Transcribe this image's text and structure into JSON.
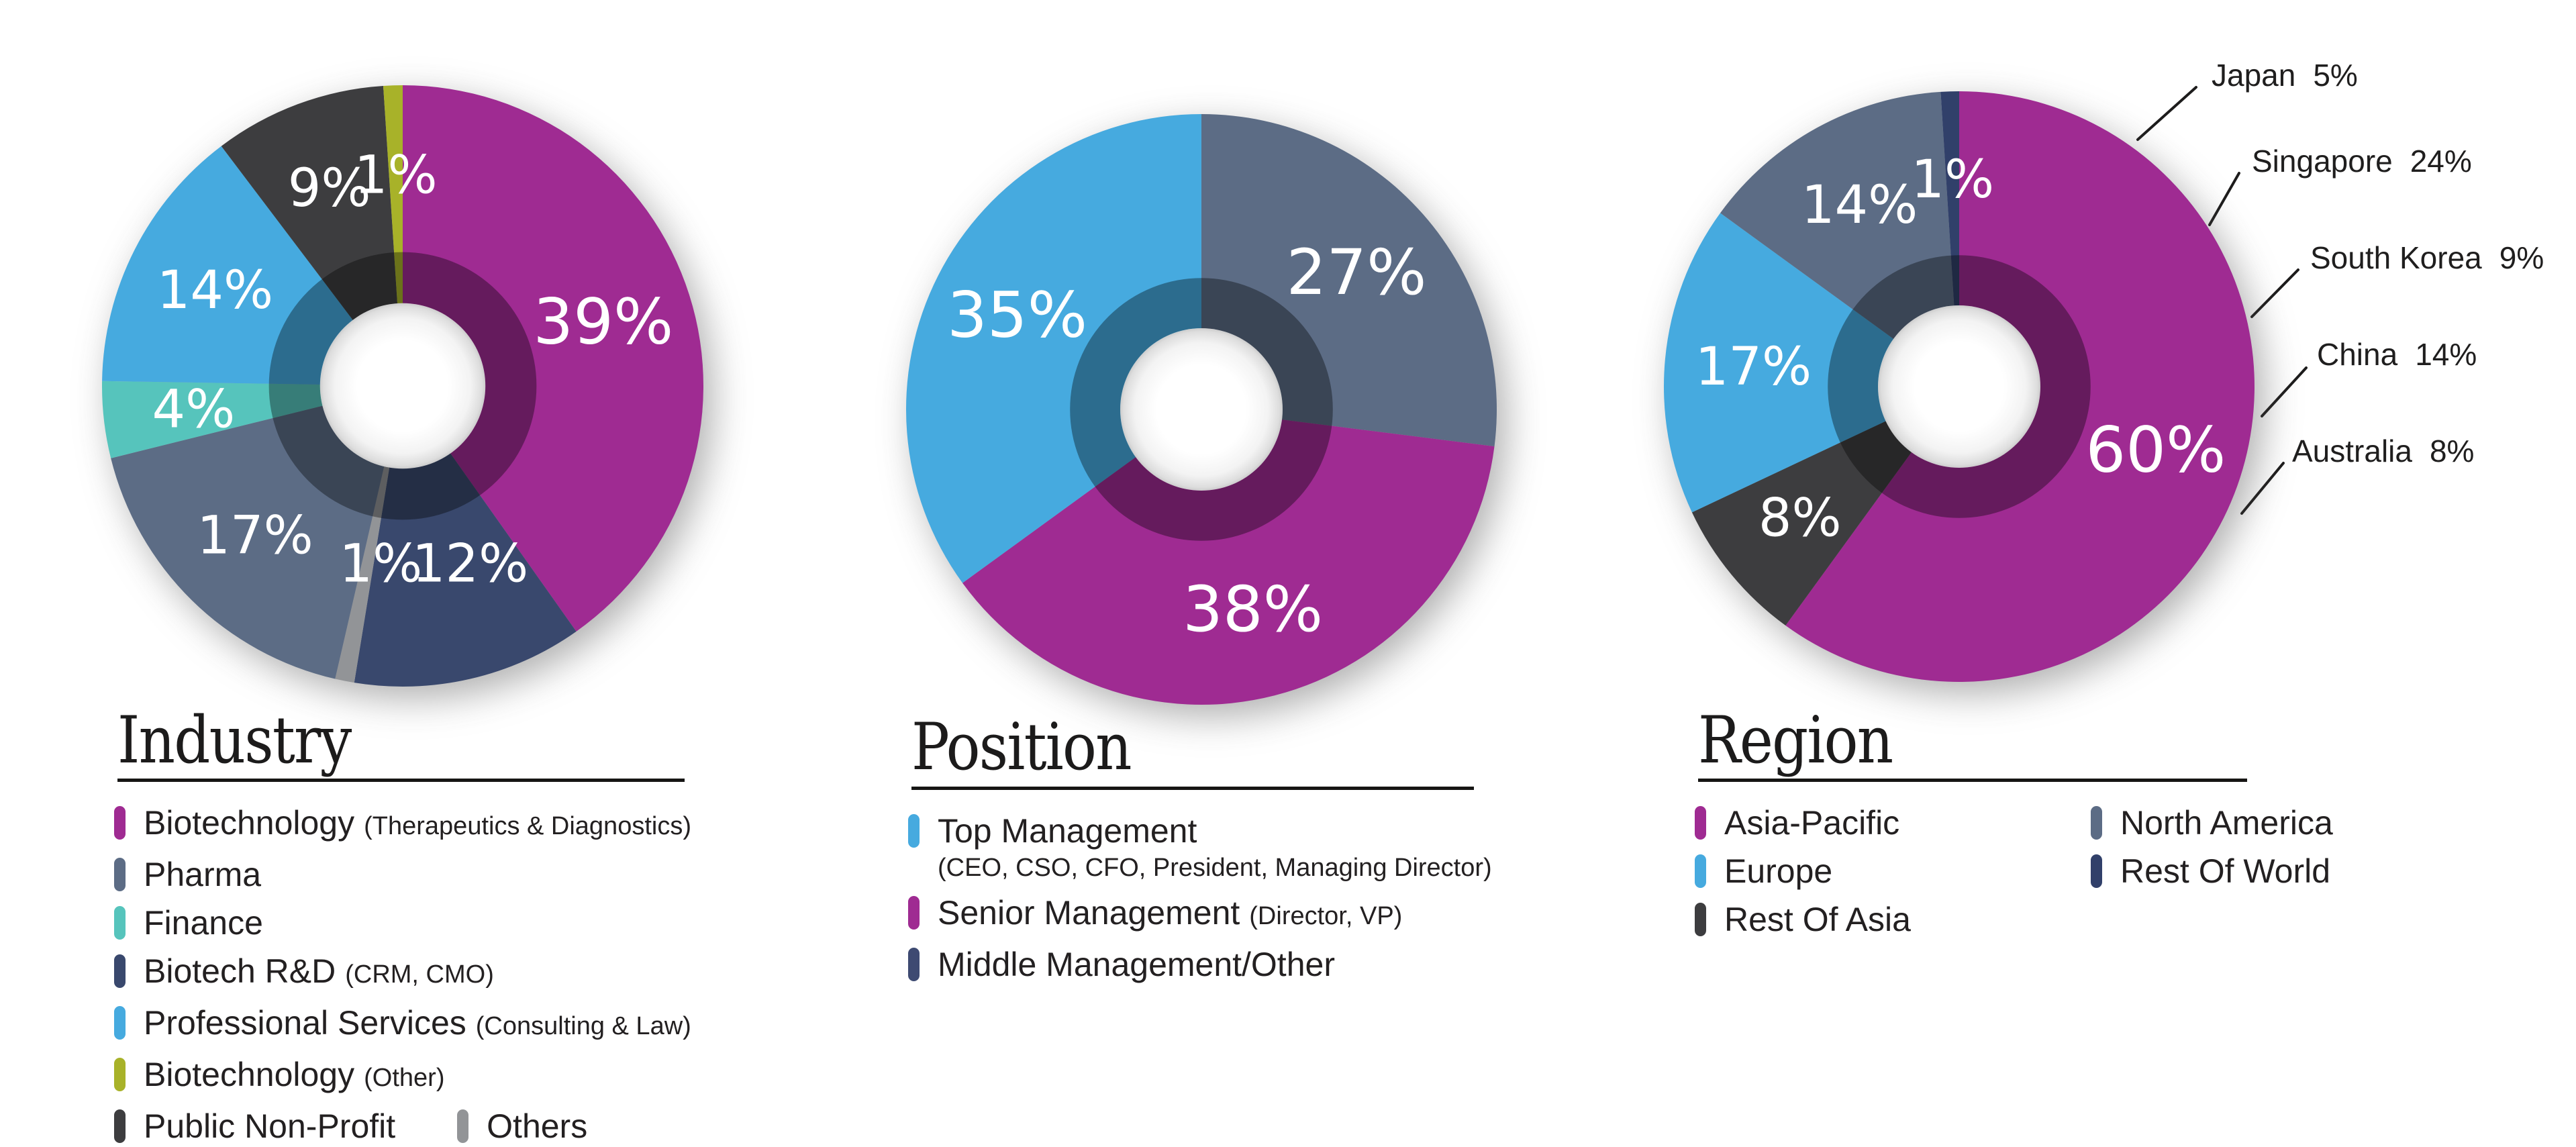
{
  "page": {
    "background": "#ffffff"
  },
  "chart_data": [
    {
      "type": "pie",
      "variant": "donut",
      "title": "Industry",
      "unit": "%",
      "legend_position": "below",
      "slices": [
        {
          "label": "Biotechnology (Therapeutics & Diagnostics)",
          "value": 39,
          "color": "#9F2B92"
        },
        {
          "label": "Biotech R&D (CRM, CMO)",
          "value": 12,
          "color": "#39486D"
        },
        {
          "label": "Others",
          "value": 1,
          "color": "#929497"
        },
        {
          "label": "Pharma",
          "value": 17,
          "color": "#5C6C85"
        },
        {
          "label": "Finance",
          "value": 4,
          "color": "#56C4BC"
        },
        {
          "label": "Professional Services (Consulting & Law)",
          "value": 14,
          "color": "#46AADF"
        },
        {
          "label": "Public Non-Profit",
          "value": 9,
          "color": "#3D3D3F"
        },
        {
          "label": "Biotechnology (Other)",
          "value": 1,
          "color": "#A8B229"
        }
      ],
      "legend": {
        "layout": "rows",
        "groups": [
          [
            {
              "text": "Biotechnology",
              "note": "(Therapeutics & Diagnostics)",
              "color": "#9F2B92"
            }
          ],
          [
            {
              "text": "Pharma",
              "color": "#5C6C85"
            }
          ],
          [
            {
              "text": "Finance",
              "color": "#56C4BC"
            }
          ],
          [
            {
              "text": "Biotech R&D",
              "note": "(CRM, CMO)",
              "color": "#39486D"
            }
          ],
          [
            {
              "text": "Professional Services",
              "note": "(Consulting & Law)",
              "color": "#46AADF"
            }
          ],
          [
            {
              "text": "Biotechnology",
              "note": "(Other)",
              "color": "#A8B229"
            }
          ],
          [
            {
              "text": "Public Non-Profit",
              "color": "#3D3D3F"
            },
            {
              "text": "Others",
              "color": "#929497"
            }
          ]
        ]
      }
    },
    {
      "type": "pie",
      "variant": "donut",
      "title": "Position",
      "unit": "%",
      "legend_position": "below",
      "slices": [
        {
          "label": "Middle Management/Other",
          "value": 27,
          "color": "#5C6C85"
        },
        {
          "label": "Senior Management (Director, VP)",
          "value": 38,
          "color": "#9F2B92"
        },
        {
          "label": "Top Management (CEO, CSO, CFO, President, Managing Director)",
          "value": 35,
          "color": "#46AADF"
        }
      ],
      "legend": {
        "layout": "rows",
        "groups": [
          [
            {
              "text": "Top Management",
              "subnote": "(CEO, CSO, CFO, President, Managing Director)",
              "color": "#46AADF"
            }
          ],
          [
            {
              "text": "Senior Management",
              "note": "(Director, VP)",
              "color": "#9F2B92"
            }
          ],
          [
            {
              "text": "Middle Management/Other",
              "color": "#3E4A72"
            }
          ]
        ]
      }
    },
    {
      "type": "pie",
      "variant": "donut",
      "title": "Region",
      "unit": "%",
      "legend_position": "below",
      "slices": [
        {
          "label": "Asia-Pacific",
          "value": 60,
          "color": "#9F2B92"
        },
        {
          "label": "Rest Of Asia",
          "value": 8,
          "color": "#3D3D3F"
        },
        {
          "label": "Europe",
          "value": 17,
          "color": "#46AADF"
        },
        {
          "label": "North America",
          "value": 14,
          "color": "#5C6C85"
        },
        {
          "label": "Rest Of World",
          "value": 1,
          "color": "#31406A"
        }
      ],
      "callouts": [
        {
          "text": "Japan",
          "value": "5%"
        },
        {
          "text": "Singapore",
          "value": "24%"
        },
        {
          "text": "South Korea",
          "value": "9%"
        },
        {
          "text": "China",
          "value": "14%"
        },
        {
          "text": "Australia",
          "value": "8%"
        }
      ],
      "legend": {
        "layout": "columns",
        "groups": [
          [
            {
              "text": "Asia-Pacific",
              "color": "#9F2B92"
            },
            {
              "text": "Europe",
              "color": "#46AADF"
            },
            {
              "text": "Rest Of Asia",
              "color": "#3D3D3F"
            }
          ],
          [
            {
              "text": "North America",
              "color": "#5C6C85"
            },
            {
              "text": "Rest Of World",
              "color": "#31406A"
            }
          ]
        ]
      }
    }
  ]
}
